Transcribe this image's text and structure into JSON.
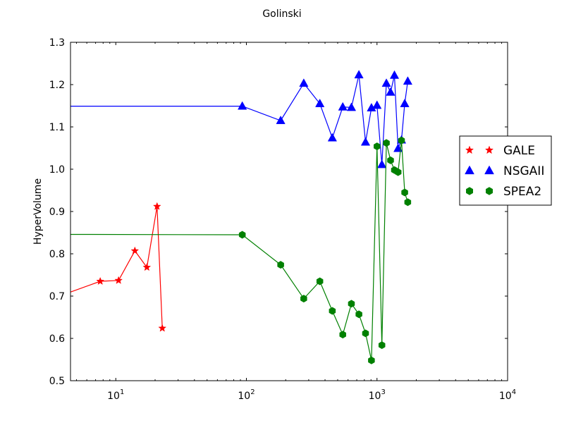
{
  "chart_data": {
    "type": "line",
    "title": "Golinski",
    "xlabel": "",
    "ylabel": "HyperVolume",
    "xscale": "log",
    "xlim": [
      4.5,
      10000
    ],
    "ylim": [
      0.5,
      1.3
    ],
    "xticks": [
      {
        "value": 10,
        "base": "10",
        "exp": "1"
      },
      {
        "value": 100,
        "base": "10",
        "exp": "2"
      },
      {
        "value": 1000,
        "base": "10",
        "exp": "3"
      },
      {
        "value": 10000,
        "base": "10",
        "exp": "4"
      }
    ],
    "yticks": [
      "0.5",
      "0.6",
      "0.7",
      "0.8",
      "0.9",
      "1.0",
      "1.1",
      "1.2",
      "1.3"
    ],
    "legend_position": "right",
    "series": [
      {
        "name": "GALE",
        "color": "#ff0000",
        "marker": "star",
        "x": [
          3.0,
          7.6,
          10.5,
          14.0,
          17.3,
          20.7,
          22.7
        ],
        "y": [
          0.69,
          0.735,
          0.737,
          0.807,
          0.768,
          0.912,
          0.624
        ]
      },
      {
        "name": "NSGAII",
        "color": "#0000ff",
        "marker": "triangle",
        "x": [
          3.0,
          93,
          183,
          275,
          365,
          455,
          547,
          637,
          727,
          817,
          907,
          1000,
          1090,
          1180,
          1270,
          1360,
          1450,
          1540,
          1630,
          1720
        ],
        "y": [
          1.149,
          1.149,
          1.115,
          1.203,
          1.155,
          1.074,
          1.147,
          1.146,
          1.223,
          1.064,
          1.145,
          1.151,
          1.011,
          1.203,
          1.182,
          1.222,
          1.049,
          1.069,
          1.155,
          1.208
        ]
      },
      {
        "name": "SPEA2",
        "color": "#008000",
        "marker": "hexagon",
        "x": [
          3.0,
          93,
          183,
          275,
          365,
          455,
          547,
          637,
          727,
          817,
          907,
          1000,
          1090,
          1180,
          1270,
          1360,
          1450,
          1540,
          1630,
          1720
        ],
        "y": [
          0.846,
          0.845,
          0.774,
          0.694,
          0.735,
          0.665,
          0.609,
          0.682,
          0.657,
          0.612,
          0.548,
          1.054,
          0.584,
          1.062,
          1.021,
          0.998,
          0.993,
          1.068,
          0.945,
          0.922
        ]
      }
    ]
  }
}
